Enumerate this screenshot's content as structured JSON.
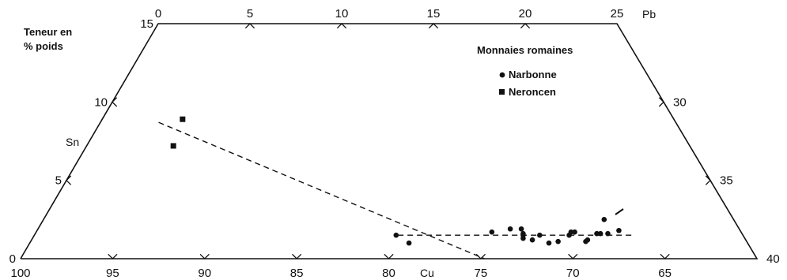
{
  "chart_data": {
    "type": "scatter",
    "title_lines": [
      "Teneur en",
      "% poids"
    ],
    "axes": {
      "sn": {
        "label": "Sn",
        "ticks": [
          {
            "value": 0,
            "label": "0"
          },
          {
            "value": 5,
            "label": "5"
          },
          {
            "value": 10,
            "label": "10"
          },
          {
            "value": 15,
            "label": "15"
          }
        ]
      },
      "pb_top": {
        "label": "Pb",
        "ticks": [
          {
            "value": 0,
            "label": "0"
          },
          {
            "value": 5,
            "label": "5"
          },
          {
            "value": 10,
            "label": "10"
          },
          {
            "value": 15,
            "label": "15"
          },
          {
            "value": 20,
            "label": "20"
          },
          {
            "value": 25,
            "label": "25"
          }
        ]
      },
      "pb_right": {
        "ticks": [
          {
            "value": 25,
            "label": ""
          },
          {
            "value": 30,
            "label": "30"
          },
          {
            "value": 35,
            "label": "35"
          },
          {
            "value": 40,
            "label": "40"
          }
        ]
      },
      "cu": {
        "label": "Cu",
        "ticks": [
          {
            "value": 100,
            "label": "100"
          },
          {
            "value": 95,
            "label": "95"
          },
          {
            "value": 90,
            "label": "90"
          },
          {
            "value": 85,
            "label": "85"
          },
          {
            "value": 80,
            "label": "80"
          },
          {
            "value": 75,
            "label": "75"
          },
          {
            "value": 70,
            "label": "70"
          },
          {
            "value": 65,
            "label": "65"
          },
          {
            "value": 60,
            "label": ""
          }
        ]
      }
    },
    "legend": {
      "title": "Monnaies romaines",
      "position": "top-right",
      "entries": [
        {
          "label": "Narbonne",
          "marker": "circle"
        },
        {
          "label": "Neroncen",
          "marker": "square"
        }
      ]
    },
    "series": [
      {
        "name": "Narbonne",
        "marker": "circle",
        "points": [
          {
            "cu": 79.6,
            "sn": 1.5
          },
          {
            "cu": 78.9,
            "sn": 1.0
          },
          {
            "cu": 74.4,
            "sn": 1.7
          },
          {
            "cu": 73.4,
            "sn": 1.9
          },
          {
            "cu": 72.8,
            "sn": 1.9
          },
          {
            "cu": 72.7,
            "sn": 1.6
          },
          {
            "cu": 72.7,
            "sn": 1.5
          },
          {
            "cu": 72.7,
            "sn": 1.3
          },
          {
            "cu": 72.2,
            "sn": 1.2
          },
          {
            "cu": 71.8,
            "sn": 1.5
          },
          {
            "cu": 71.3,
            "sn": 1.0
          },
          {
            "cu": 70.8,
            "sn": 1.1
          },
          {
            "cu": 70.2,
            "sn": 1.5
          },
          {
            "cu": 70.1,
            "sn": 1.7
          },
          {
            "cu": 69.9,
            "sn": 1.7
          },
          {
            "cu": 69.3,
            "sn": 1.1
          },
          {
            "cu": 69.2,
            "sn": 1.2
          },
          {
            "cu": 68.7,
            "sn": 1.6
          },
          {
            "cu": 68.5,
            "sn": 1.6
          },
          {
            "cu": 68.1,
            "sn": 1.6
          },
          {
            "cu": 67.5,
            "sn": 1.8
          },
          {
            "cu": 68.3,
            "sn": 2.5
          }
        ]
      },
      {
        "name": "Neroncen",
        "marker": "square",
        "points": [
          {
            "cu": 91.2,
            "sn": 8.9
          },
          {
            "cu": 91.7,
            "sn": 7.2
          }
        ]
      }
    ],
    "trend_lines": [
      {
        "from": {
          "cu": 92.5,
          "sn": 8.7
        },
        "to": {
          "cu": 74.8,
          "sn": 0.0
        }
      },
      {
        "from": {
          "cu": 79.5,
          "sn": 1.5
        },
        "to": {
          "cu": 66.8,
          "sn": 1.5
        }
      }
    ]
  }
}
